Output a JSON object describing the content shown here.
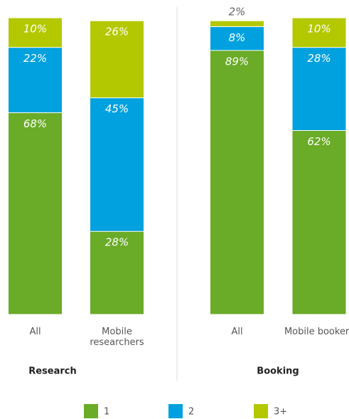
{
  "chart_data": {
    "type": "stacked-bar",
    "categories": [
      "All",
      "Mobile researchers",
      "All",
      "Mobile bookers"
    ],
    "groups": [
      "Research",
      "Booking"
    ],
    "series": [
      {
        "name": "1",
        "color": "#6aab27",
        "values": [
          68,
          28,
          89,
          62
        ],
        "value_labels": [
          "68%",
          "28%",
          "89%",
          "62%"
        ]
      },
      {
        "name": "2",
        "color": "#00a1de",
        "values": [
          22,
          45,
          8,
          28
        ],
        "value_labels": [
          "22%",
          "45%",
          "8%",
          "28%"
        ]
      },
      {
        "name": "3+",
        "color": "#b4c800",
        "values": [
          10,
          26,
          2,
          10
        ],
        "value_labels": [
          "10%",
          "26%",
          "2%",
          "10%"
        ]
      }
    ]
  }
}
